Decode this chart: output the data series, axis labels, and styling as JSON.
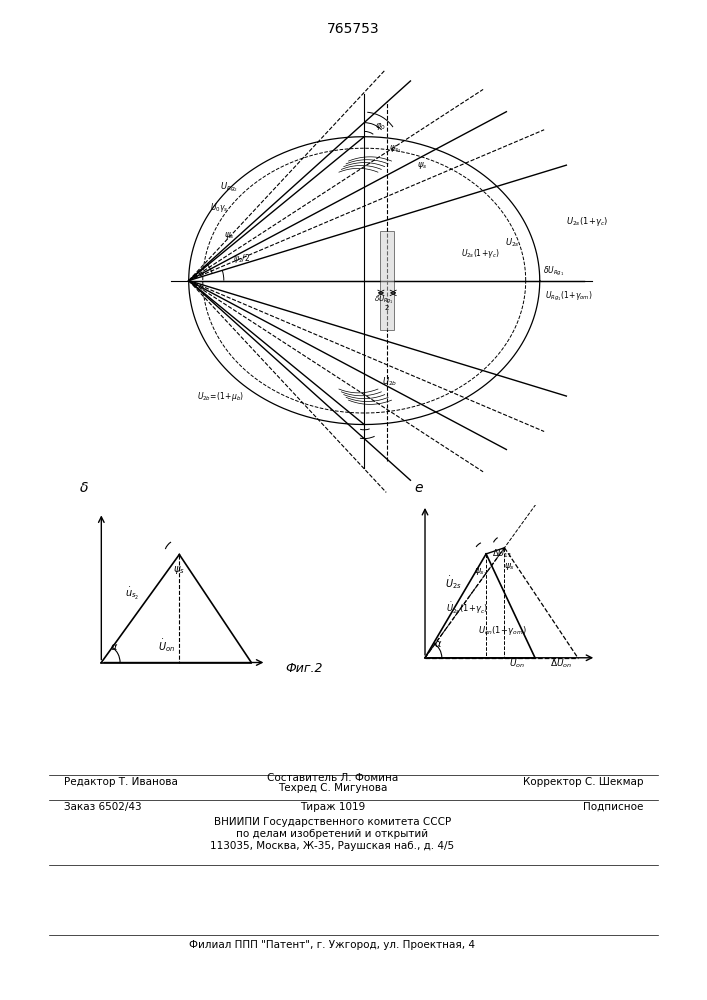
{
  "patent_number": "765753",
  "fig_label": "Фиг.2",
  "bg_color": "#ffffff",
  "line_color": "#000000",
  "footer": {
    "editor": "Редактор Т. Иванова",
    "composer_label": "Составитель Л. Фомина",
    "tech_label": "Техред С. Мигунова",
    "corrector": "Корректор С. Шекмар",
    "order": "Заказ 6502/43",
    "tirazh": "Тираж 1019",
    "podpisnoe": "Подписное",
    "vniipи": "ВНИИПИ Государственного комитета СССР",
    "po_delam": "по делам изобретений и открытий",
    "address": "113035, Москва, Ж-35, Раушская наб., д. 4/5",
    "filial": "Филиал ППП \"Патент\", г. Ужгород, ул. Проектная, 4"
  }
}
